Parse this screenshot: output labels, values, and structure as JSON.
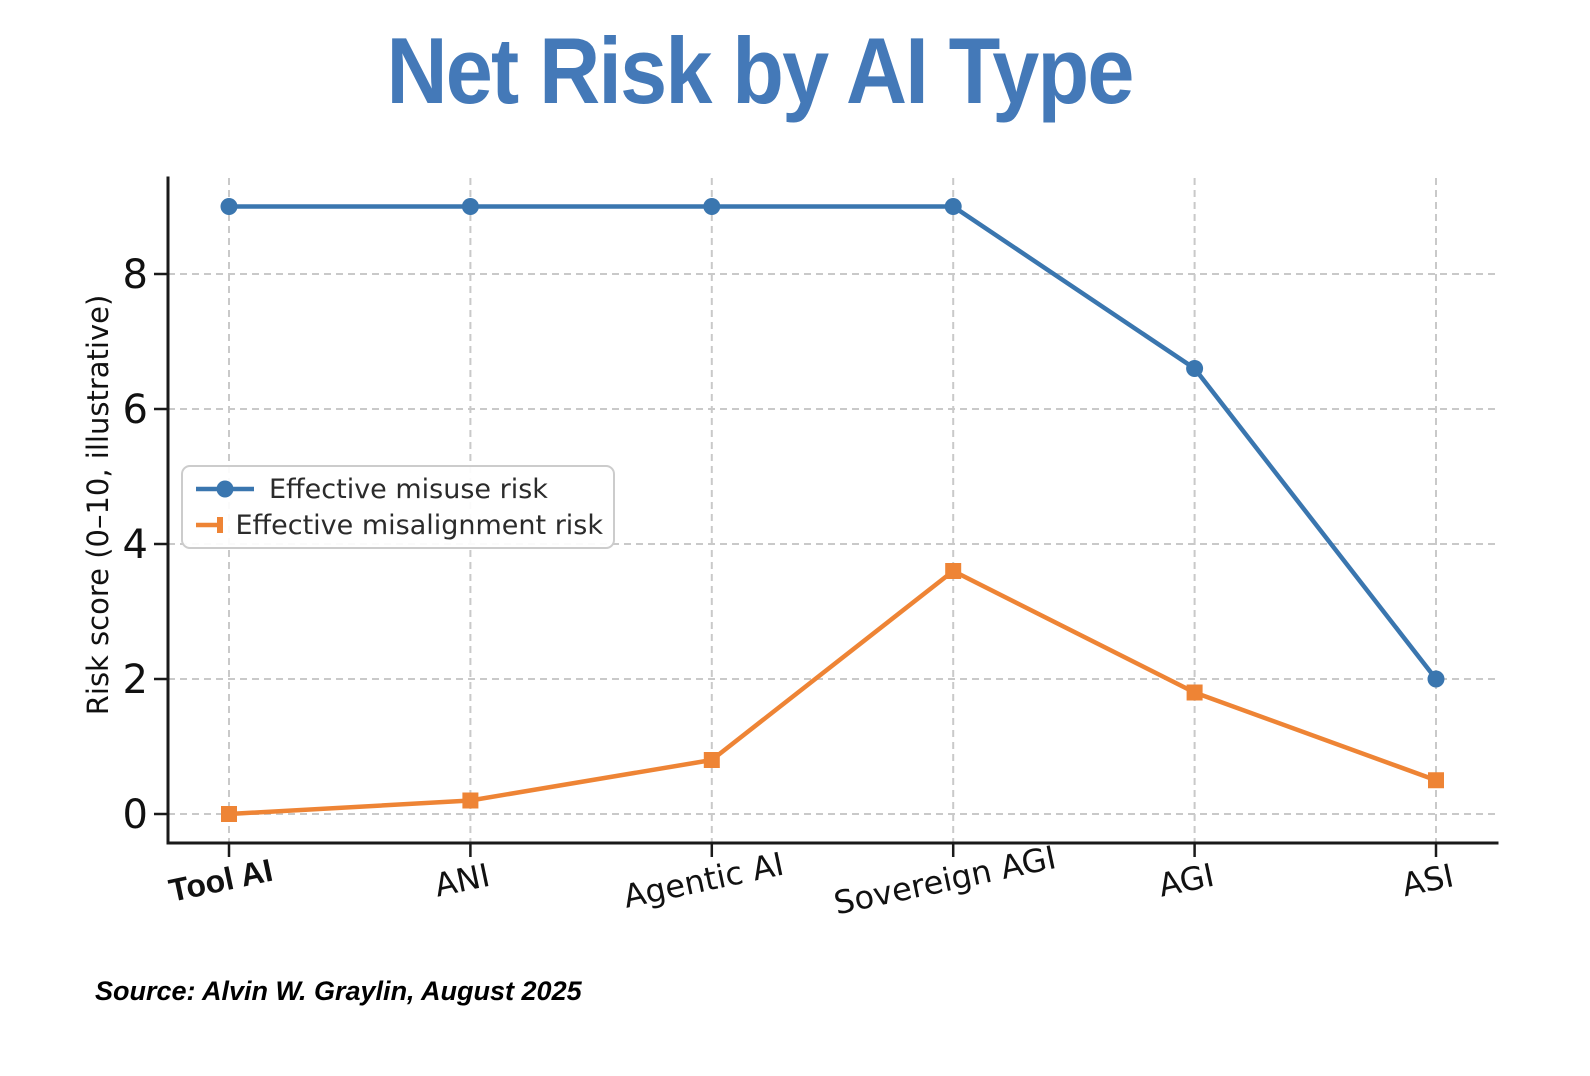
{
  "source": {
    "text": "Source: Alvin W. Graylin, August 2025"
  },
  "colors": {
    "title": "#4479b8",
    "misuse_line": "#3a76af",
    "misalignment_line": "#ee8435",
    "gridline": "#c9c9c9",
    "axis": "#1a1a1a",
    "legend_border": "#cccccc"
  },
  "chart_data": {
    "type": "line",
    "title": "Net Risk by AI Type",
    "ylabel": "Risk score (0–10, illustrative)",
    "xlabel": "",
    "categories": [
      "Tool AI",
      "ANI",
      "Agentic AI",
      "Sovereign AGI",
      "AGI",
      "ASI"
    ],
    "bold_categories": [
      "Tool AI"
    ],
    "series": [
      {
        "name": "Effective misuse risk",
        "color": "#3a76af",
        "marker": "circle",
        "values": [
          9,
          9,
          9,
          9,
          6.6,
          2
        ]
      },
      {
        "name": "Effective misalignment risk",
        "color": "#ee8435",
        "marker": "square",
        "values": [
          0,
          0.2,
          0.8,
          3.6,
          1.8,
          0.5
        ]
      }
    ],
    "yticks": [
      0,
      2,
      4,
      6,
      8
    ],
    "ylim": [
      -0.45,
      9.45
    ],
    "grid": true,
    "legend_position": "center left",
    "xtick_rotation": -12
  }
}
